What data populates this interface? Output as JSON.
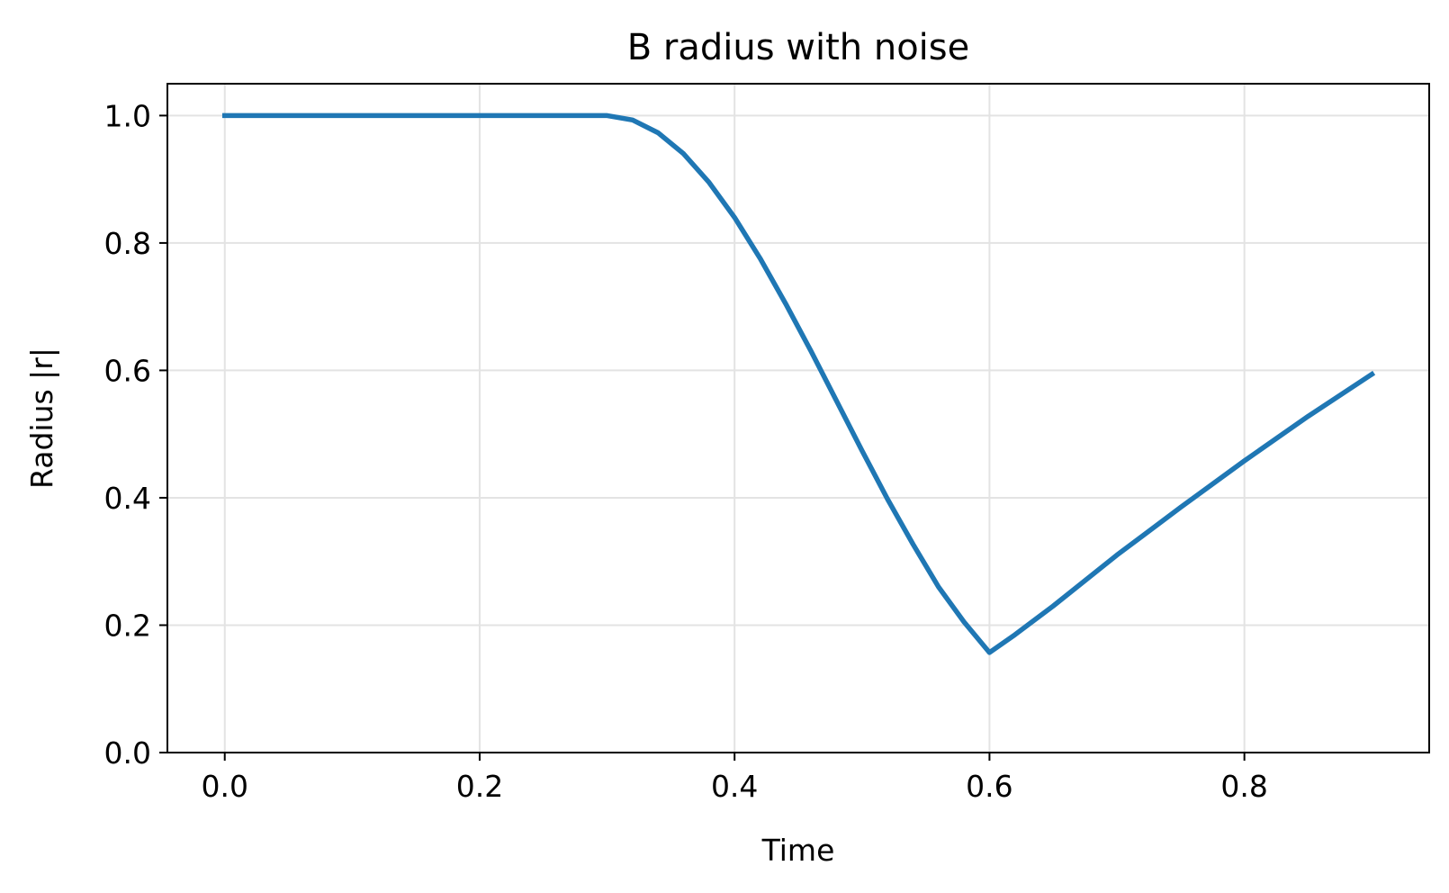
{
  "chart_data": {
    "type": "line",
    "title": "B radius with noise",
    "xlabel": "Time",
    "ylabel": "Radius |r|",
    "xlim": [
      -0.045,
      0.945
    ],
    "ylim": [
      0.0,
      1.05
    ],
    "xticks": [
      {
        "value": 0.0,
        "label": "0.0"
      },
      {
        "value": 0.2,
        "label": "0.2"
      },
      {
        "value": 0.4,
        "label": "0.4"
      },
      {
        "value": 0.6,
        "label": "0.6"
      },
      {
        "value": 0.8,
        "label": "0.8"
      }
    ],
    "yticks": [
      {
        "value": 0.0,
        "label": "0.0"
      },
      {
        "value": 0.2,
        "label": "0.2"
      },
      {
        "value": 0.4,
        "label": "0.4"
      },
      {
        "value": 0.6,
        "label": "0.6"
      },
      {
        "value": 0.8,
        "label": "0.8"
      },
      {
        "value": 1.0,
        "label": "1.0"
      }
    ],
    "grid": true,
    "series": [
      {
        "color": "#1f77b4",
        "x": [
          0.0,
          0.05,
          0.1,
          0.15,
          0.2,
          0.25,
          0.3,
          0.32,
          0.34,
          0.36,
          0.38,
          0.4,
          0.42,
          0.44,
          0.46,
          0.48,
          0.5,
          0.52,
          0.54,
          0.56,
          0.58,
          0.6,
          0.62,
          0.65,
          0.7,
          0.75,
          0.8,
          0.85,
          0.9
        ],
        "y": [
          1.0,
          1.0,
          1.0,
          1.0,
          1.0,
          1.0,
          1.0,
          0.993,
          0.973,
          0.94,
          0.895,
          0.84,
          0.776,
          0.705,
          0.63,
          0.552,
          0.474,
          0.398,
          0.327,
          0.26,
          0.205,
          0.157,
          0.185,
          0.23,
          0.31,
          0.385,
          0.458,
          0.528,
          0.594
        ]
      }
    ]
  }
}
